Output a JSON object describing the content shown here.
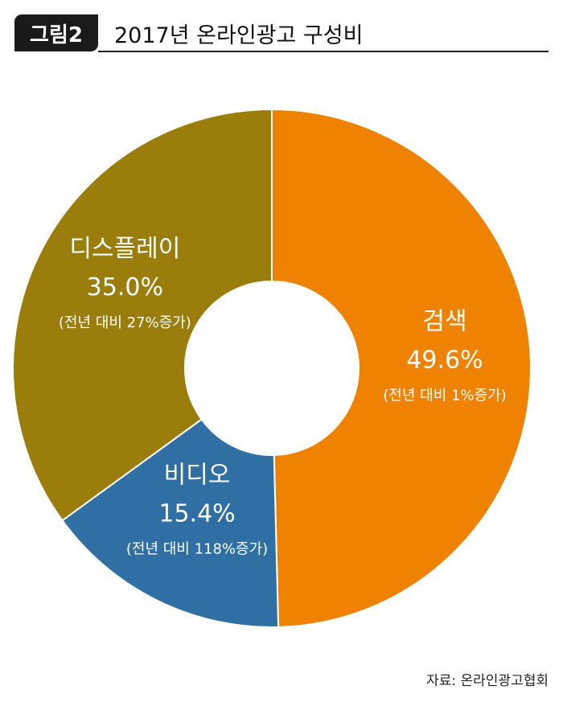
{
  "header": {
    "badge": "그림2",
    "title": "2017년 온라인광고 구성비"
  },
  "chart_data": {
    "type": "pie",
    "donut": true,
    "categories": [
      "검색",
      "비디오",
      "디스플레이"
    ],
    "values": [
      49.6,
      15.4,
      35.0
    ],
    "value_labels": [
      "49.6%",
      "15.4%",
      "35.0%"
    ],
    "growth_labels": [
      "(전년 대비 1%증가)",
      "(전년 대비 118%증가)",
      "(전년 대비 27%증가)"
    ],
    "colors": [
      "#ef8200",
      "#2f6fa4",
      "#9a7d0a"
    ],
    "legend": "none"
  },
  "source": "자료: 온라인광고협회"
}
